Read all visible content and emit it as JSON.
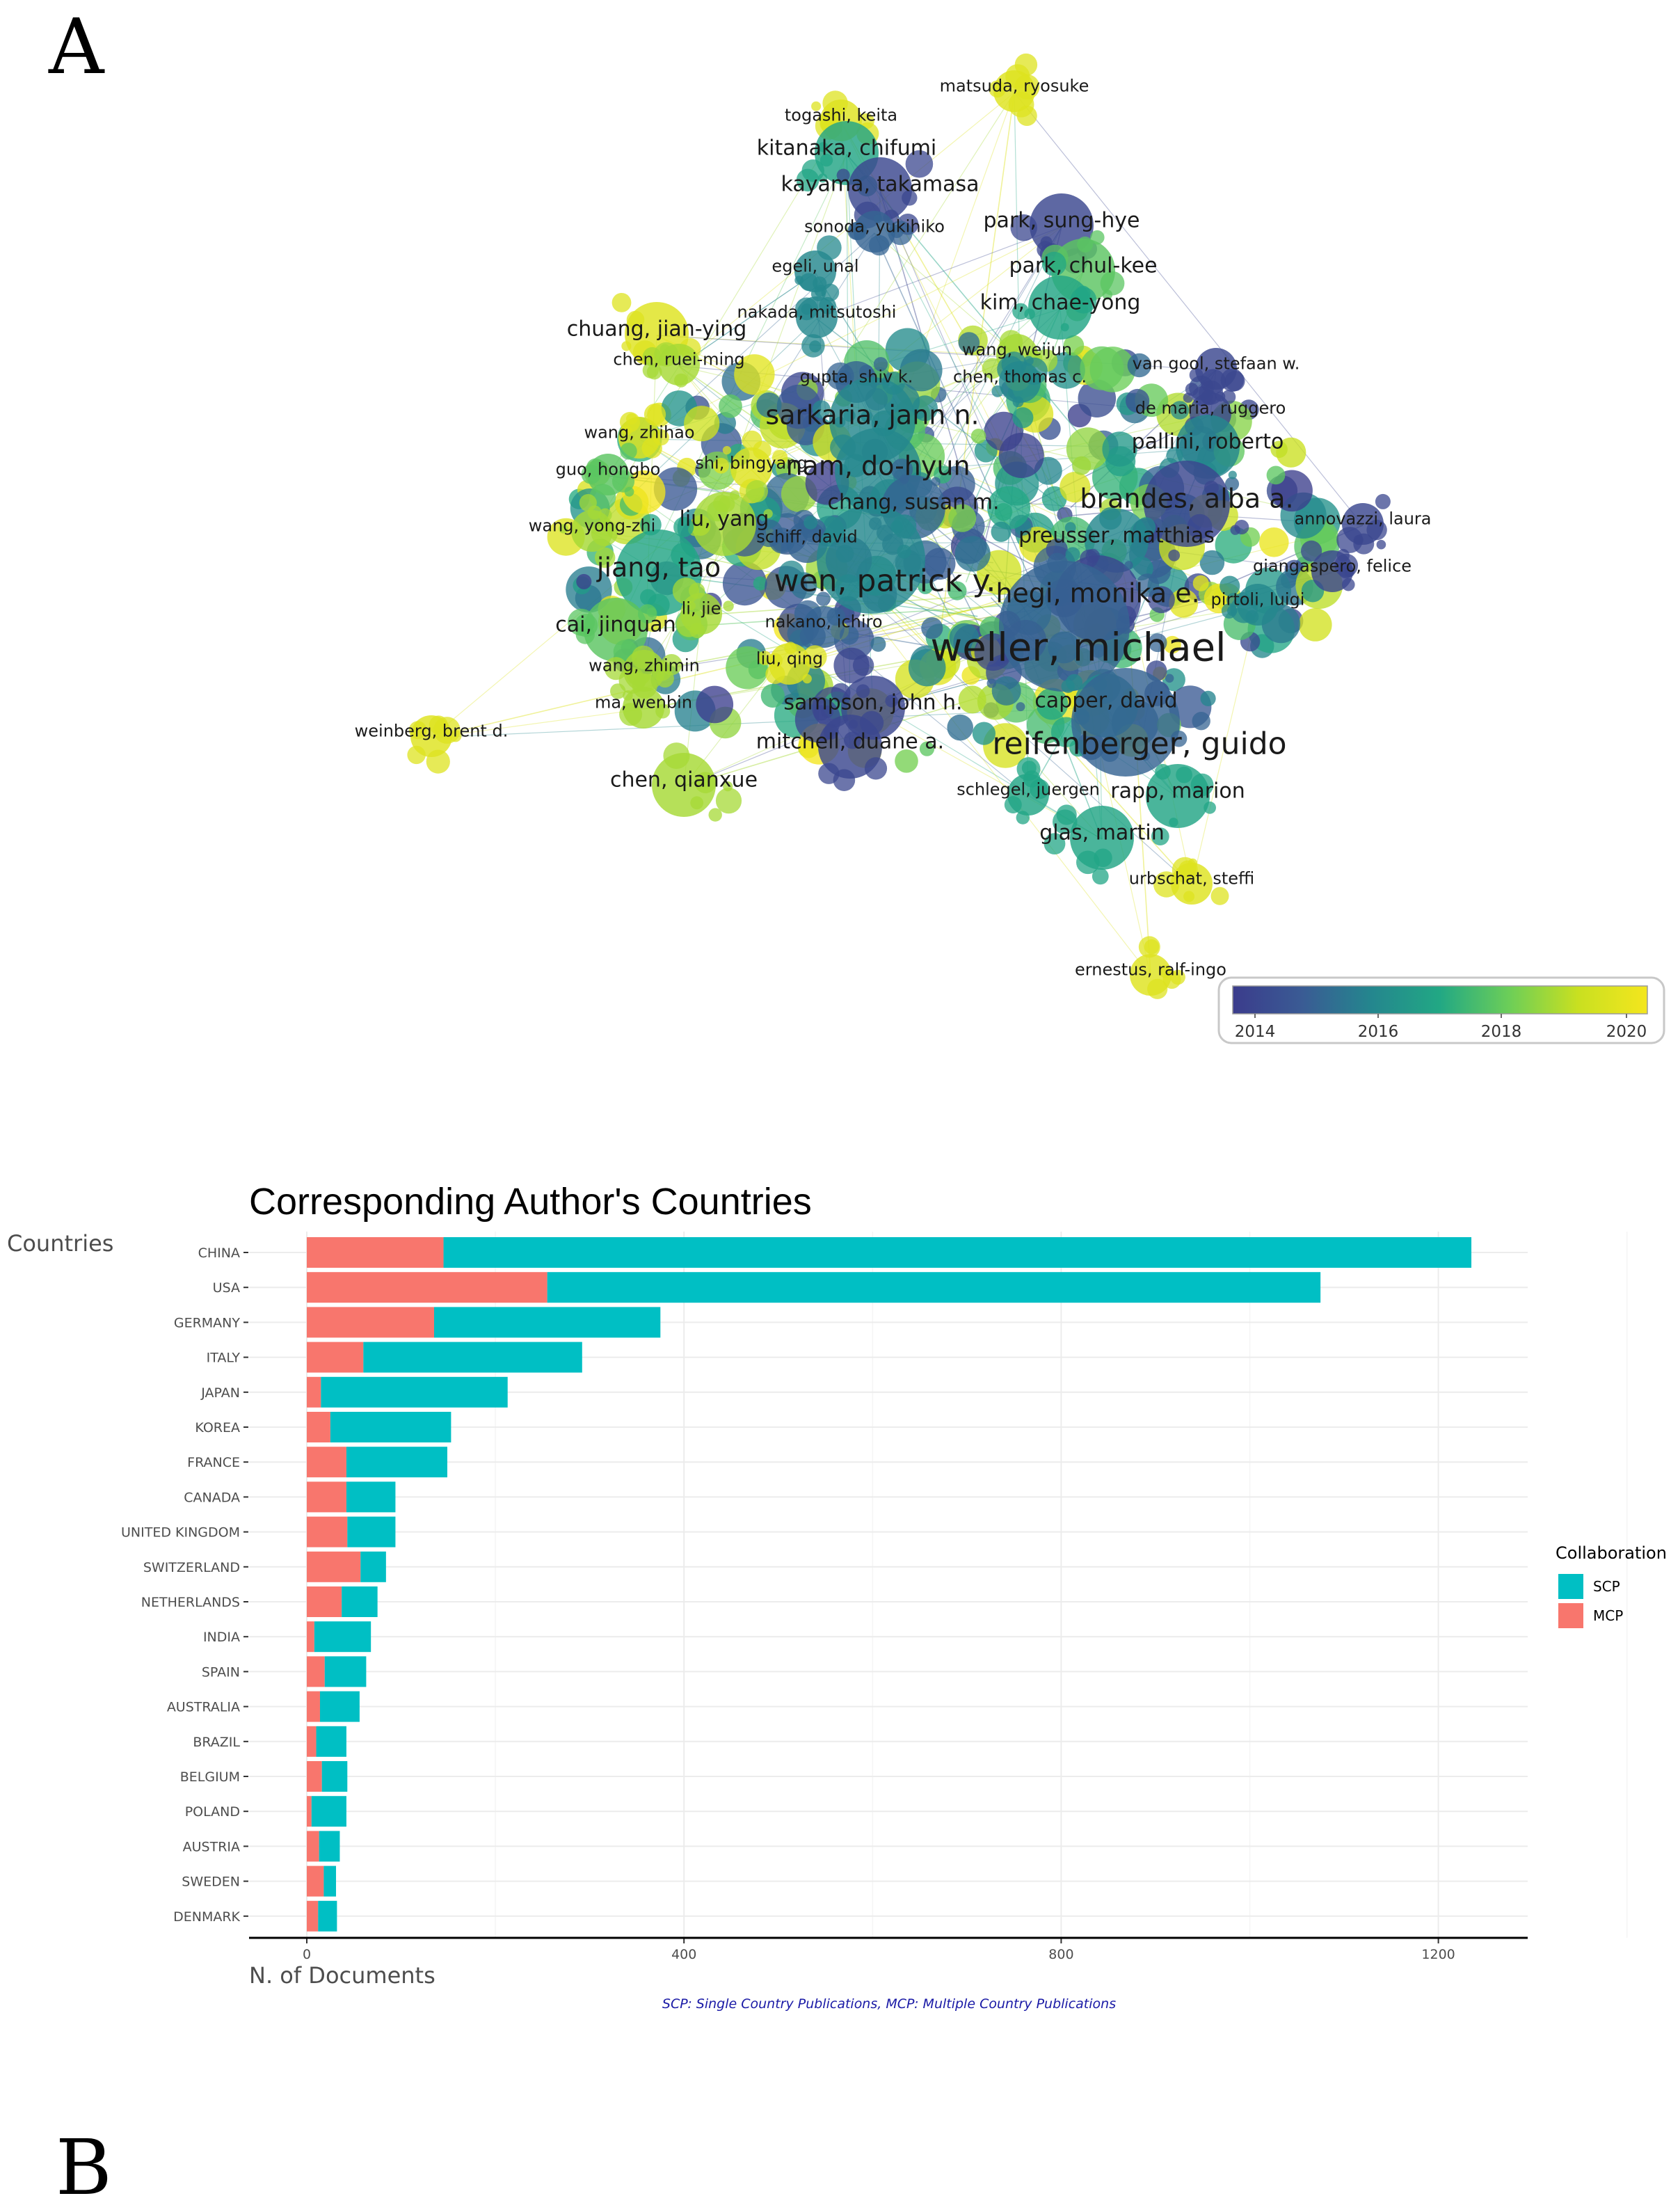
{
  "panel_a": {
    "letter": "A",
    "network": {
      "type": "co-authorship network",
      "nodes": [
        {
          "label": "matsuda, ryosuke",
          "size": 1,
          "year": 2020
        },
        {
          "label": "togashi, keita",
          "size": 1,
          "year": 2020
        },
        {
          "label": "kitanaka, chifumi",
          "size": 2,
          "year": 2017
        },
        {
          "label": "kayama, takamasa",
          "size": 2,
          "year": 2014
        },
        {
          "label": "sonoda, yukihiko",
          "size": 1,
          "year": 2015
        },
        {
          "label": "park, sung-hye",
          "size": 2,
          "year": 2014
        },
        {
          "label": "egeli, unal",
          "size": 1,
          "year": 2016
        },
        {
          "label": "park, chul-kee",
          "size": 2,
          "year": 2018
        },
        {
          "label": "kim, chae-yong",
          "size": 2,
          "year": 2017
        },
        {
          "label": "nakada, mitsutoshi",
          "size": 1,
          "year": 2016
        },
        {
          "label": "chuang, jian-ying",
          "size": 2,
          "year": 2020
        },
        {
          "label": "chen, ruei-ming",
          "size": 1,
          "year": 2019
        },
        {
          "label": "wang, weijun",
          "size": 1,
          "year": 2019
        },
        {
          "label": "gupta, shiv k.",
          "size": 1,
          "year": 2015
        },
        {
          "label": "chen, thomas c.",
          "size": 1,
          "year": 2016
        },
        {
          "label": "van gool, stefaan w.",
          "size": 1,
          "year": 2014
        },
        {
          "label": "de maria, ruggero",
          "size": 1,
          "year": 2014
        },
        {
          "label": "sarkaria, jann n.",
          "size": 3,
          "year": 2016
        },
        {
          "label": "pallini, roberto",
          "size": 2,
          "year": 2016
        },
        {
          "label": "wang, zhihao",
          "size": 1,
          "year": 2020
        },
        {
          "label": "shi, bingyang",
          "size": 1,
          "year": 2020
        },
        {
          "label": "guo, hongbo",
          "size": 1,
          "year": 2018
        },
        {
          "label": "nam, do-hyun",
          "size": 3,
          "year": 2016
        },
        {
          "label": "chang, susan m.",
          "size": 2,
          "year": 2015
        },
        {
          "label": "brandes, alba a.",
          "size": 3,
          "year": 2014
        },
        {
          "label": "wang, yong-zhi",
          "size": 1,
          "year": 2019
        },
        {
          "label": "liu, yang",
          "size": 2,
          "year": 2019
        },
        {
          "label": "annovazzi, laura",
          "size": 1,
          "year": 2014
        },
        {
          "label": "schiff, david",
          "size": 1,
          "year": 2015
        },
        {
          "label": "preusser, matthias",
          "size": 2,
          "year": 2016
        },
        {
          "label": "giangaspero, felice",
          "size": 1,
          "year": 2014
        },
        {
          "label": "jiang, tao",
          "size": 3,
          "year": 2017
        },
        {
          "label": "wen, patrick y.",
          "size": 4,
          "year": 2016
        },
        {
          "label": "hegi, monika e.",
          "size": 3,
          "year": 2014
        },
        {
          "label": "pirtoli, luigi",
          "size": 1,
          "year": 2016
        },
        {
          "label": "li, jie",
          "size": 1,
          "year": 2019
        },
        {
          "label": "cai, jinquan",
          "size": 2,
          "year": 2018
        },
        {
          "label": "nakano, ichiro",
          "size": 1,
          "year": 2015
        },
        {
          "label": "weller, michael",
          "size": 5,
          "year": 2015
        },
        {
          "label": "wang, zhimin",
          "size": 1,
          "year": 2019
        },
        {
          "label": "liu, qing",
          "size": 1,
          "year": 2020
        },
        {
          "label": "ma, wenbin",
          "size": 1,
          "year": 2019
        },
        {
          "label": "sampson, john h.",
          "size": 2,
          "year": 2014
        },
        {
          "label": "capper, david",
          "size": 2,
          "year": 2016
        },
        {
          "label": "weinberg, brent d.",
          "size": 1,
          "year": 2020
        },
        {
          "label": "mitchell, duane a.",
          "size": 2,
          "year": 2014
        },
        {
          "label": "reifenberger, guido",
          "size": 4,
          "year": 2015
        },
        {
          "label": "chen, qianxue",
          "size": 2,
          "year": 2019
        },
        {
          "label": "schlegel, juergen",
          "size": 1,
          "year": 2017
        },
        {
          "label": "rapp, marion",
          "size": 2,
          "year": 2017
        },
        {
          "label": "glas, martin",
          "size": 2,
          "year": 2017
        },
        {
          "label": "urbschat, steffi",
          "size": 1,
          "year": 2020
        },
        {
          "label": "ernestus, ralf-ingo",
          "size": 1,
          "year": 2020
        }
      ],
      "colorbar": {
        "ticks": [
          "2014",
          "2016",
          "2018",
          "2020"
        ],
        "colors": [
          "#3b3c8c",
          "#3a5b94",
          "#24868e",
          "#22a884",
          "#6cce58",
          "#c9e020",
          "#f4e61e"
        ]
      }
    }
  },
  "panel_b": {
    "letter": "B",
    "caption": "SCP: Single Country Publications, MCP: Multiple Country Publications"
  },
  "chart_data": {
    "type": "bar",
    "orientation": "horizontal",
    "stacked": true,
    "title": "Corresponding Author's Countries",
    "xlabel": "N. of Documents",
    "ylabel": "Countries",
    "xlim": [
      0,
      1300
    ],
    "xticks": [
      0,
      400,
      800,
      1200
    ],
    "grid": true,
    "legend": {
      "title": "Collaboration",
      "position": "right",
      "entries": [
        "SCP",
        "MCP"
      ]
    },
    "categories": [
      "CHINA",
      "USA",
      "GERMANY",
      "ITALY",
      "JAPAN",
      "KOREA",
      "FRANCE",
      "CANADA",
      "UNITED KINGDOM",
      "SWITZERLAND",
      "NETHERLANDS",
      "INDIA",
      "SPAIN",
      "AUSTRALIA",
      "BRAZIL",
      "BELGIUM",
      "POLAND",
      "AUSTRIA",
      "SWEDEN",
      "DENMARK"
    ],
    "series": [
      {
        "name": "MCP",
        "color": "#f8766d",
        "values": [
          145,
          255,
          135,
          60,
          15,
          25,
          42,
          42,
          43,
          57,
          37,
          8,
          19,
          14,
          10,
          16,
          5,
          13,
          18,
          12
        ]
      },
      {
        "name": "SCP",
        "color": "#00bfc4",
        "values": [
          1090,
          820,
          240,
          232,
          198,
          128,
          107,
          52,
          51,
          27,
          38,
          60,
          44,
          42,
          32,
          27,
          37,
          22,
          13,
          20
        ]
      }
    ]
  }
}
